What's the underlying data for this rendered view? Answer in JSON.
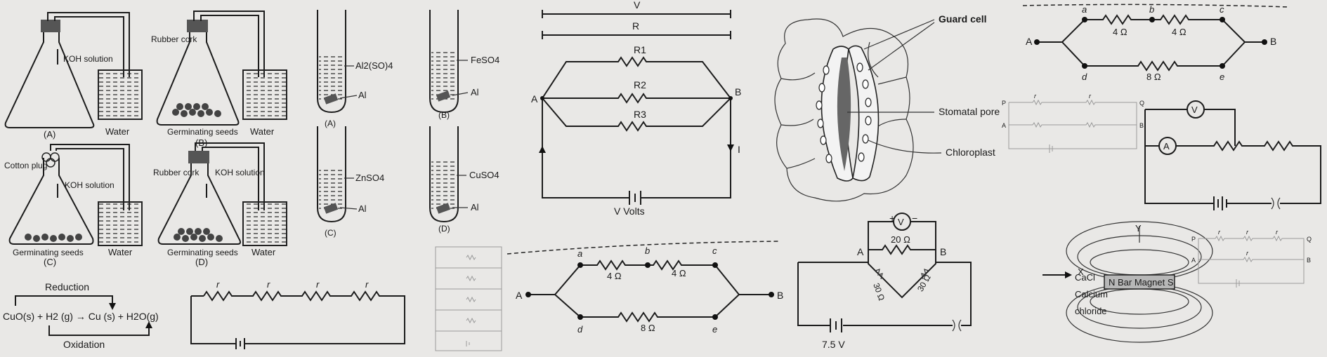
{
  "panel_flasks": {
    "koh_solution": "KOH solution",
    "rubber_cork": "Rubber cork",
    "cotton_plug": "Cotton plug",
    "germinating_seeds": "Germinating seeds",
    "water": "Water",
    "labels": [
      "(A)",
      "(B)",
      "(C)",
      "(D)"
    ]
  },
  "panel_testtubes": {
    "solutions": [
      "Al2(SO)4",
      "FeSO4",
      "ZnSO4",
      "CuSO4"
    ],
    "metal": "Al",
    "labels": [
      "(A)",
      "(B)",
      "(C)",
      "(D)"
    ]
  },
  "panel_redox": {
    "reduction": "Reduction",
    "oxidation": "Oxidation",
    "equation": "CuO(s) + H2 (g) → Cu (s) + H2O(g)"
  },
  "panel_series": {
    "resistor": "r"
  },
  "panel_parallel": {
    "v": "V",
    "r": "R",
    "r1": "R1",
    "r2": "R2",
    "r3": "R3",
    "a": "A",
    "b": "B",
    "i": "I",
    "v_volts": "V Volts"
  },
  "panel_network": {
    "nodes": [
      "a",
      "b",
      "c",
      "d",
      "e",
      "A",
      "B"
    ],
    "r_ab": "4 Ω",
    "r_bc": "4 Ω",
    "r_de": "8 Ω"
  },
  "panel_stomata": {
    "guard_cell": "Guard cell",
    "stomatal_pore": "Stomatal pore",
    "chloroplast": "Chloroplast"
  },
  "panel_bridge": {
    "v": "V",
    "a": "A",
    "b": "B",
    "r_top": "20 Ω",
    "r_left": "30 Ω",
    "r_right": "30 Ω",
    "battery": "7.5 V"
  },
  "panel_meters": {
    "voltmeter": "V",
    "ammeter": "A"
  },
  "panel_small": {
    "p": "P",
    "q": "Q",
    "a": "A",
    "b": "B",
    "r": "r"
  },
  "panel_magnet": {
    "y": "Y",
    "x": "X",
    "magnet": "N Bar Magnet S",
    "cacl": "CaCl",
    "calcium": "Calcium",
    "chloride": "chloride"
  }
}
